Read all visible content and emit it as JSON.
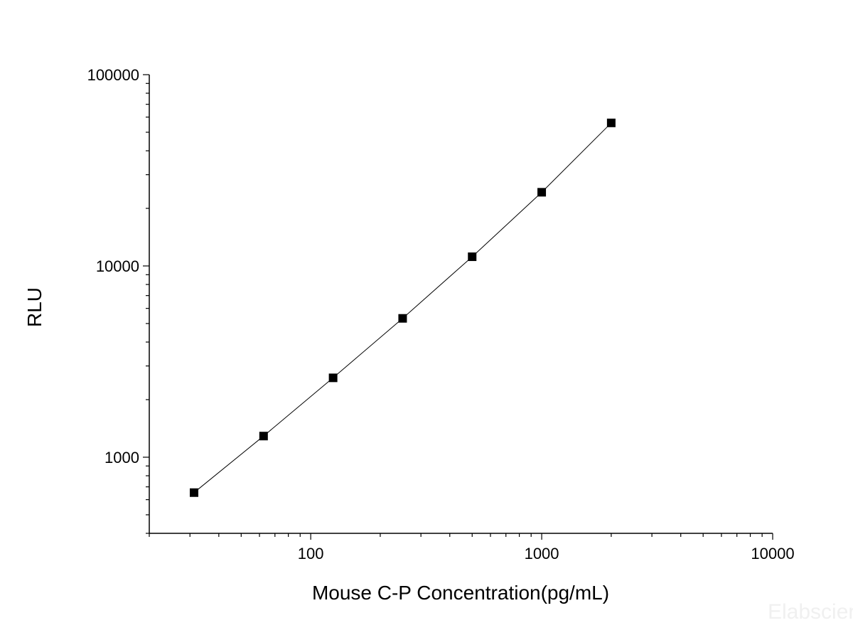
{
  "chart_data": {
    "type": "line",
    "title": "",
    "xlabel": "Mouse C-P Concentration(pg/mL)",
    "ylabel": "RLU",
    "xscale": "log",
    "yscale": "log",
    "xlim": [
      20,
      10000
    ],
    "ylim": [
      400,
      100000
    ],
    "x_ticks": [
      100,
      1000,
      10000
    ],
    "x_tick_labels": [
      "100",
      "1000",
      "10000"
    ],
    "y_ticks": [
      1000,
      10000,
      100000
    ],
    "y_tick_labels": [
      "1000",
      "10000",
      "100000"
    ],
    "grid": false,
    "marker": "square",
    "colors": {
      "line": "#000000",
      "marker": "#000000"
    },
    "series": [
      {
        "x": [
          31.25,
          62.5,
          125,
          250,
          500,
          1000,
          2000
        ],
        "y": [
          653,
          1290,
          2600,
          5320,
          11170,
          24280,
          55960
        ]
      }
    ],
    "watermark": "Elabscience"
  }
}
